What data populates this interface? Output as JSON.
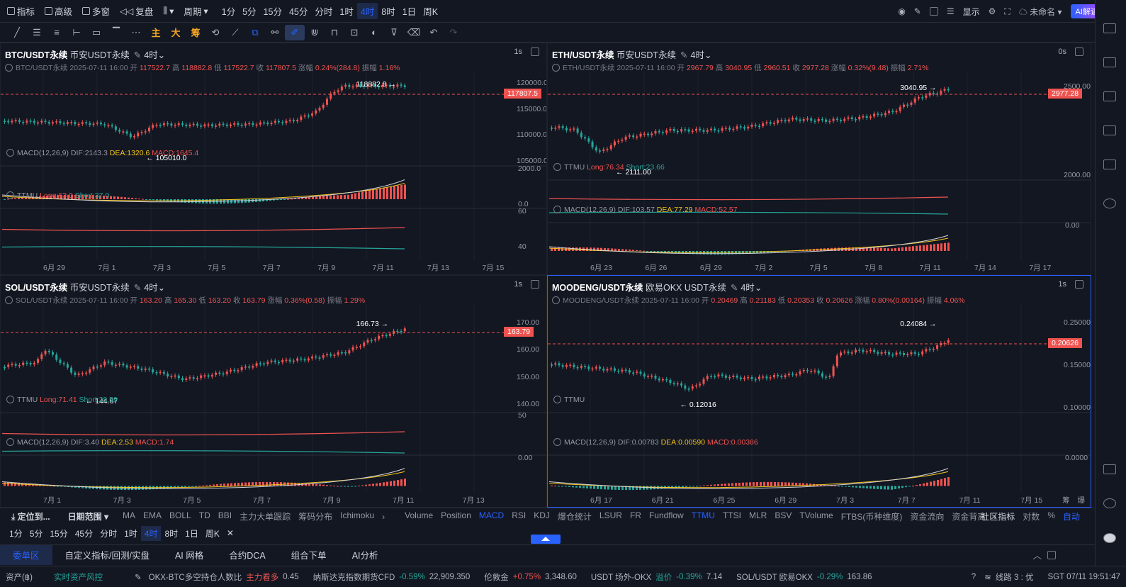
{
  "toolbar1": {
    "items": [
      "指标",
      "高级",
      "多窗",
      "复盘"
    ],
    "periods": [
      "周期"
    ],
    "timeframes": [
      "1分",
      "5分",
      "15分",
      "45分",
      "分时",
      "1时",
      "4时",
      "8时",
      "1日",
      "周K"
    ],
    "active_tf": "4时",
    "right": {
      "display": "显示",
      "unnamed": "未命名",
      "ai": "AI解读"
    }
  },
  "toolbar2": {
    "text_tools": [
      "主",
      "大",
      "筹"
    ]
  },
  "panels": [
    {
      "symbol": "BTC/USDT永续",
      "exchange": "币安USDT永续",
      "interval": "4时",
      "speed": "1s",
      "info": {
        "label": "BTC/USDT永续",
        "time": "2025-07-11 16:00",
        "o": "117522.7",
        "h": "118882.8",
        "l": "117522.7",
        "c": "117807.5",
        "chg": "0.24%(284.8)",
        "amp": "1.16%"
      },
      "price_tag": "117807.5",
      "high_label": "118882.8 →",
      "low_label": "← 105010.0",
      "axis": [
        "120000.0",
        "115000.0",
        "110000.0",
        "105000.0"
      ],
      "ind1": {
        "name": "MACD(12,26,9)",
        "dif": "DIF:2143.3",
        "dea": "DEA:1320.6",
        "macd": "MACD:1645.4",
        "axis": [
          "2000.0",
          "0.0"
        ]
      },
      "ind2": {
        "name": "TTMU",
        "long": "Long:63.0",
        "short": "Short:37.0",
        "axis": [
          "60",
          "40"
        ]
      },
      "dates": [
        "6月 29",
        "7月 1",
        "7月 3",
        "7月 5",
        "7月 7",
        "7月 9",
        "7月 11",
        "7月 13",
        "7月 15"
      ]
    },
    {
      "symbol": "ETH/USDT永续",
      "exchange": "币安USDT永续",
      "interval": "4时",
      "speed": "0s",
      "info": {
        "label": "ETH/USDT永续",
        "time": "2025-07-11 16:00",
        "o": "2967.79",
        "h": "3040.95",
        "l": "2960.51",
        "c": "2977.28",
        "chg": "0.32%(9.48)",
        "amp": "2.71%"
      },
      "price_tag": "2977.28",
      "high_label": "3040.95 →",
      "low_label": "← 2111.00",
      "axis": [
        "2500.00",
        "2000.00"
      ],
      "ind1": {
        "name": "TTMU",
        "long": "Long:76.34",
        "short": "Short:23.66"
      },
      "ind2": {
        "name": "MACD(12,26,9)",
        "dif": "DIF:103.57",
        "dea": "DEA:77.29",
        "macd": "MACD:52.57",
        "axis": [
          "0.00"
        ]
      },
      "dates": [
        "6月 23",
        "6月 26",
        "6月 29",
        "7月 2",
        "7月 5",
        "7月 8",
        "7月 11",
        "7月 14",
        "7月 17"
      ]
    },
    {
      "symbol": "SOL/USDT永续",
      "exchange": "币安USDT永续",
      "interval": "4时",
      "speed": "1s",
      "info": {
        "label": "SOL/USDT永续",
        "time": "2025-07-11 16:00",
        "o": "163.20",
        "h": "165.30",
        "l": "163.20",
        "c": "163.79",
        "chg": "0.36%(0.58)",
        "amp": "1.29%"
      },
      "price_tag": "163.79",
      "high_label": "166.73 →",
      "low_label": "← 144.67",
      "axis": [
        "170.00",
        "160.00",
        "150.00",
        "140.00"
      ],
      "ind1": {
        "name": "TTMU",
        "long": "Long:71.41",
        "short": "Short:28.59",
        "axis": [
          "50"
        ]
      },
      "ind2": {
        "name": "MACD(12,26,9)",
        "dif": "DIF:3.40",
        "dea": "DEA:2.53",
        "macd": "MACD:1.74",
        "axis": [
          "0.00"
        ]
      },
      "dates": [
        "7月 1",
        "7月 3",
        "7月 5",
        "7月 7",
        "7月 9",
        "7月 11",
        "7月 13"
      ]
    },
    {
      "symbol": "MOODENG/USDT永续",
      "exchange": "欧易OKX USDT永续",
      "interval": "4时",
      "speed": "1s",
      "info": {
        "label": "MOODENG/USDT永续",
        "time": "2025-07-11 16:00",
        "o": "0.20469",
        "h": "0.21183",
        "l": "0.20353",
        "c": "0.20626",
        "chg": "0.80%(0.00164)",
        "amp": "4.06%"
      },
      "price_tag": "0.20626",
      "high_label": "0.24084 →",
      "low_label": "← 0.12016",
      "axis": [
        "0.25000",
        "0.15000",
        "0.10000"
      ],
      "ind1": {
        "name": "TTMU"
      },
      "ind2": {
        "name": "MACD(12,26,9)",
        "dif": "DIF:0.00783",
        "dea": "DEA:0.00590",
        "macd": "MACD:0.00386",
        "axis": [
          "0.0000"
        ]
      },
      "dates": [
        "6月 17",
        "6月 21",
        "6月 25",
        "6月 29",
        "7月 3",
        "7月 7",
        "7月 11",
        "7月 15"
      ],
      "corner": [
        "筹",
        "爆"
      ]
    }
  ],
  "labels": {
    "open": "开",
    "high": "高",
    "low": "低",
    "close": "收",
    "chg": "涨幅",
    "amp": "振幅"
  },
  "indbar": {
    "locate": "定位到...",
    "range": "日期范围",
    "left": [
      "MA",
      "EMA",
      "BOLL",
      "TD",
      "BBI",
      "主力大单跟踪",
      "筹码分布",
      "Ichimoku"
    ],
    "right": [
      "Volume",
      "Position",
      "MACD",
      "RSI",
      "KDJ",
      "爆仓统计",
      "LSUR",
      "FR",
      "Fundflow",
      "TTMU",
      "TTSI",
      "MLR",
      "BSV",
      "TVolume",
      "FTBS(币种维度)",
      "资金流向",
      "资金背离"
    ],
    "active": [
      "MACD",
      "TTMU"
    ],
    "tail": [
      "社区指标",
      "对数",
      "%",
      "自动"
    ]
  },
  "tfbar": [
    "1分",
    "5分",
    "15分",
    "45分",
    "分时",
    "1时",
    "4时",
    "8时",
    "1日",
    "周K"
  ],
  "bottabs": [
    "委单区",
    "自定义指标/回测/实盘",
    "AI 网格",
    "合约DCA",
    "组合下单",
    "AI分析"
  ],
  "status": {
    "asset": "资产(฿)",
    "risk": "实时资产风控",
    "items": [
      {
        "name": "OKX-BTC多空持仓人数比",
        "tag": "主力看多",
        "val": "0.45"
      },
      {
        "name": "纳斯达克指数期货CFD",
        "chg": "-0.59%",
        "val": "22,909.350"
      },
      {
        "name": "伦敦金",
        "chg": "+0.75%",
        "val": "3,348.60"
      },
      {
        "name": "USDT 场外-OKX",
        "tag": "溢价",
        "chg": "-0.39%",
        "val": "7.14"
      },
      {
        "name": "SOL/USDT 欧易OKX",
        "chg": "-0.29%",
        "val": "163.86"
      }
    ],
    "line": "线路 3 : 优",
    "clock": "SGT 07/11 19:51:47"
  },
  "colors": {
    "up": "#ef5350",
    "down": "#26a69a",
    "accent": "#2962ff",
    "bg": "#131722"
  }
}
